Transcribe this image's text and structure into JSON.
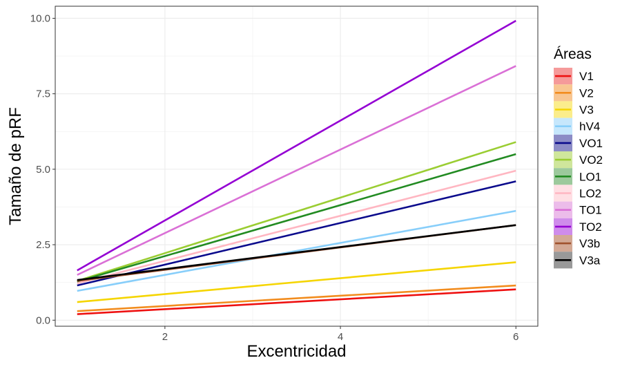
{
  "chart_data": {
    "type": "line",
    "xlabel": "Excentricidad",
    "ylabel": "Tamaño de pRF",
    "xlim": [
      0.75,
      6.25
    ],
    "ylim": [
      -0.2,
      10.4
    ],
    "x_ticks": [
      2,
      4,
      6
    ],
    "x_tick_labels": [
      "2",
      "4",
      "6"
    ],
    "y_ticks": [
      0,
      2.5,
      5,
      7.5,
      10
    ],
    "y_tick_labels": [
      "0.0",
      "2.5",
      "5.0",
      "7.5",
      "10.0"
    ],
    "grid": true,
    "legend": {
      "title": "Áreas",
      "position": "right"
    },
    "series": [
      {
        "name": "V1",
        "color": "#ee1111",
        "band_color": "#f59a9a",
        "x": [
          1,
          6
        ],
        "values": [
          0.2,
          1.02
        ]
      },
      {
        "name": "V2",
        "color": "#f28c1e",
        "band_color": "#f8c692",
        "x": [
          1,
          6
        ],
        "values": [
          0.3,
          1.15
        ]
      },
      {
        "name": "V3",
        "color": "#f5d500",
        "band_color": "#fbed8c",
        "x": [
          1,
          6
        ],
        "values": [
          0.6,
          1.92
        ]
      },
      {
        "name": "hV4",
        "color": "#87cefa",
        "band_color": "#c6e7fc",
        "x": [
          1,
          6
        ],
        "values": [
          0.97,
          3.62
        ]
      },
      {
        "name": "VO1",
        "color": "#0a0a8c",
        "band_color": "#8c8cc6",
        "x": [
          1,
          6
        ],
        "values": [
          1.15,
          4.6
        ]
      },
      {
        "name": "VO2",
        "color": "#9acd32",
        "band_color": "#cfe69c",
        "x": [
          1,
          6
        ],
        "values": [
          1.3,
          5.9
        ]
      },
      {
        "name": "LO1",
        "color": "#228b22",
        "band_color": "#9cc99c",
        "x": [
          1,
          6
        ],
        "values": [
          1.28,
          5.5
        ]
      },
      {
        "name": "LO2",
        "color": "#ffb6c1",
        "band_color": "#ffdfe4",
        "x": [
          1,
          6
        ],
        "values": [
          1.22,
          4.95
        ]
      },
      {
        "name": "TO1",
        "color": "#da70d6",
        "band_color": "#ecbcea",
        "x": [
          1,
          6
        ],
        "values": [
          1.5,
          8.42
        ]
      },
      {
        "name": "TO2",
        "color": "#9400d3",
        "band_color": "#cf8ceb",
        "x": [
          1,
          6
        ],
        "values": [
          1.65,
          9.92
        ]
      },
      {
        "name": "V3b",
        "color": "#a0522d",
        "band_color": "#d3a995",
        "x": [
          1,
          6
        ],
        "values": [
          1.3,
          3.15
        ]
      },
      {
        "name": "V3a",
        "color": "#000000",
        "band_color": "#999999",
        "x": [
          1,
          6
        ],
        "values": [
          1.33,
          3.15
        ]
      }
    ]
  }
}
